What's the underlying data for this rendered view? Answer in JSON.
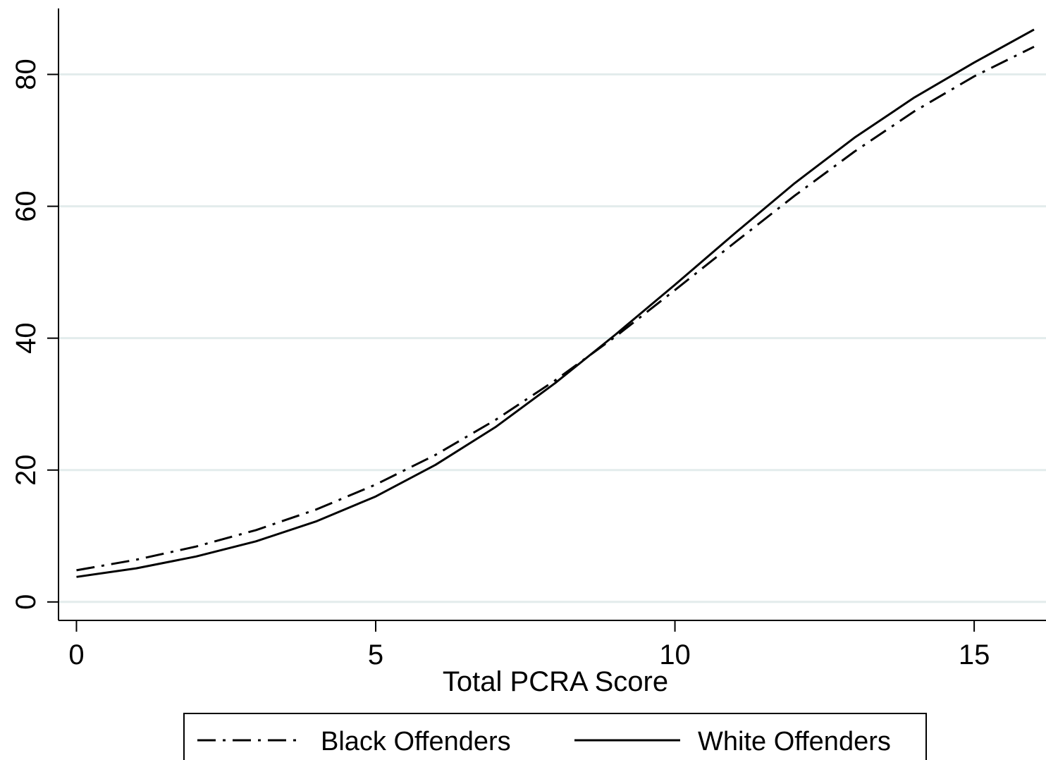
{
  "chart_data": {
    "type": "line",
    "title": "",
    "xlabel": "Total PCRA Score",
    "ylabel": "",
    "xlim": [
      -0.3,
      16.2
    ],
    "ylim": [
      -2.8,
      90
    ],
    "x_ticks": [
      0,
      5,
      10,
      15
    ],
    "y_ticks": [
      0,
      20,
      40,
      60,
      80
    ],
    "grid": "horizontal",
    "legend_position": "bottom",
    "series": [
      {
        "name": "Black Offenders",
        "line_style": "dash-dot",
        "color": "#000000",
        "x": [
          0,
          1,
          2,
          3,
          4,
          5,
          6,
          7,
          8,
          9,
          10,
          11,
          12,
          13,
          14,
          15,
          16
        ],
        "y": [
          4.8,
          6.4,
          8.4,
          10.9,
          14.0,
          17.8,
          22.3,
          27.6,
          33.6,
          40.2,
          47.3,
          54.5,
          61.6,
          68.3,
          74.4,
          79.7,
          84.2
        ]
      },
      {
        "name": "White Offenders",
        "line_style": "solid",
        "color": "#000000",
        "x": [
          0,
          1,
          2,
          3,
          4,
          5,
          6,
          7,
          8,
          9,
          10,
          11,
          12,
          13,
          14,
          15,
          16
        ],
        "y": [
          3.8,
          5.1,
          6.9,
          9.2,
          12.2,
          16.0,
          20.8,
          26.5,
          33.2,
          40.5,
          48.1,
          55.9,
          63.5,
          70.4,
          76.5,
          81.8,
          86.8
        ]
      }
    ]
  }
}
